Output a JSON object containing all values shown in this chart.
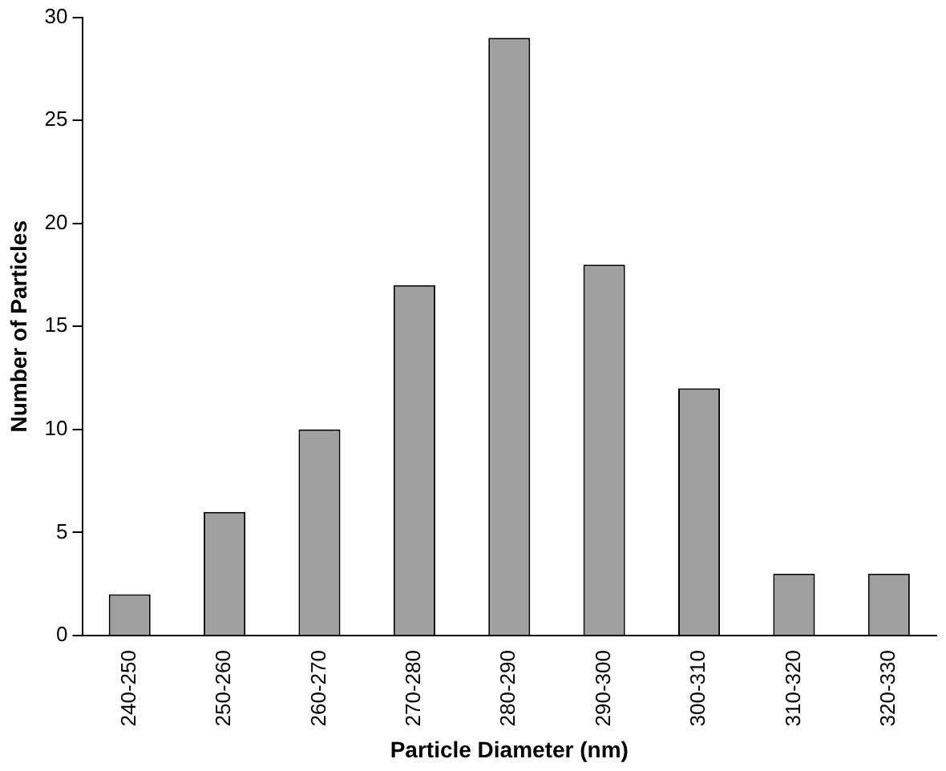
{
  "chart_data": {
    "type": "bar",
    "xlabel": "Particle Diameter (nm)",
    "ylabel": "Number of Particles",
    "categories": [
      "240-250",
      "250-260",
      "260-270",
      "270-280",
      "280-290",
      "290-300",
      "300-310",
      "310-320",
      "320-330"
    ],
    "values": [
      2,
      6,
      10,
      17,
      29,
      18,
      12,
      3,
      3
    ],
    "color": "#a0a0a0",
    "ylim": [
      0,
      30
    ],
    "yticks": [
      0,
      5,
      10,
      15,
      20,
      25,
      30
    ],
    "grid": false,
    "legend": false
  }
}
